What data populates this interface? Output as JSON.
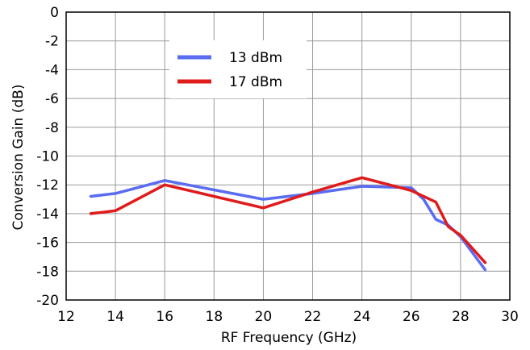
{
  "chart_data": {
    "type": "line",
    "title": "",
    "xlabel": "RF Frequency (GHz)",
    "ylabel": "Conversion Gain (dB)",
    "xlim": [
      12,
      30
    ],
    "ylim": [
      -20,
      0
    ],
    "xticks": [
      12,
      14,
      16,
      18,
      20,
      22,
      24,
      26,
      28,
      30
    ],
    "yticks": [
      0,
      -2,
      -4,
      -6,
      -8,
      -10,
      -12,
      -14,
      -16,
      -18,
      -20
    ],
    "grid": true,
    "legend_position": "top-left",
    "series": [
      {
        "name": "13 dBm",
        "color": "#5a6cf0",
        "x": [
          13,
          14,
          16,
          20,
          22,
          24,
          26,
          26.5,
          27,
          27.5,
          28,
          29
        ],
        "y": [
          -12.8,
          -12.6,
          -11.7,
          -13.0,
          -12.6,
          -12.1,
          -12.2,
          -13.0,
          -14.4,
          -14.8,
          -15.6,
          -17.9
        ]
      },
      {
        "name": "17 dBm",
        "color": "#e01b1b",
        "x": [
          13,
          14,
          16,
          20,
          22,
          24,
          26,
          27,
          27.5,
          28,
          29
        ],
        "y": [
          -14.0,
          -13.8,
          -12.0,
          -13.6,
          -12.5,
          -11.5,
          -12.4,
          -13.2,
          -14.9,
          -15.5,
          -17.4
        ]
      }
    ]
  }
}
